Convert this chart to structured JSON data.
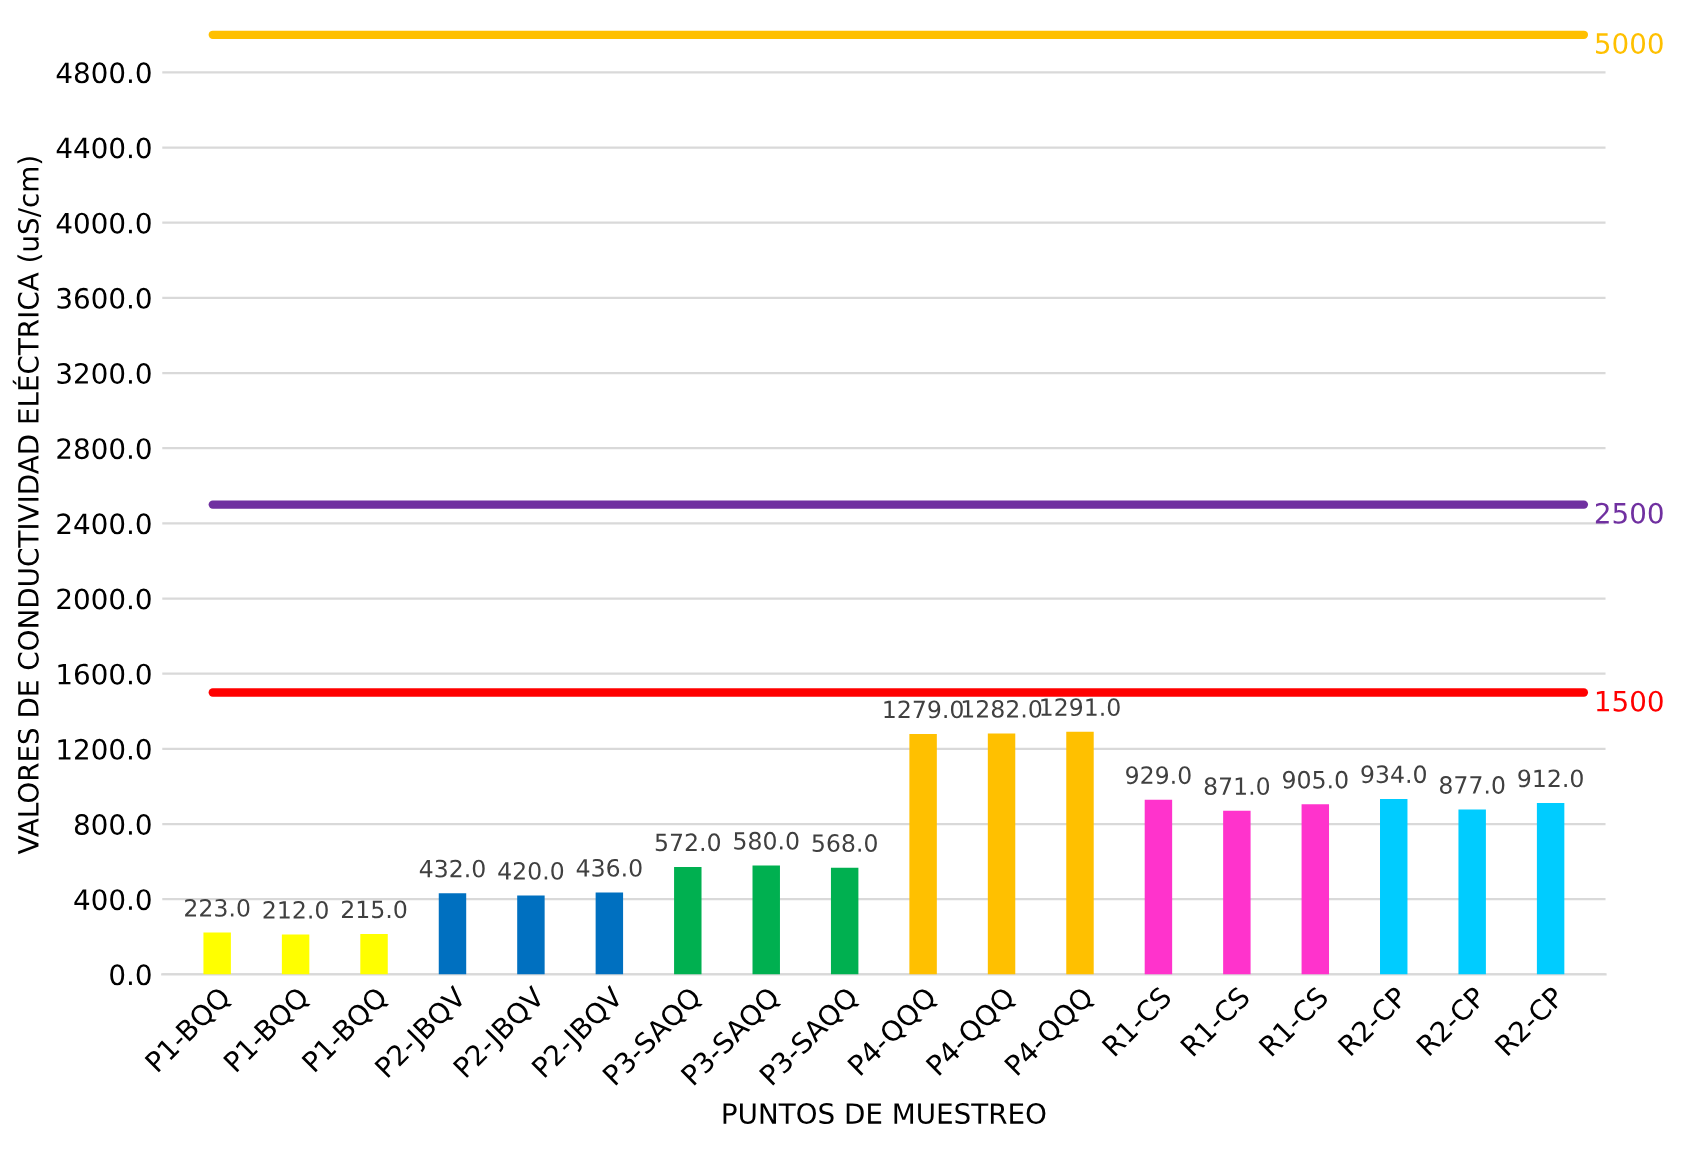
{
  "chart_data": {
    "type": "bar",
    "xlabel": "PUNTOS DE MUESTREO",
    "ylabel": "VALORES DE CONDUCTIVIDAD ELÉCTRICA (uS/cm)",
    "categories": [
      "P1-BQQ",
      "P1-BQQ",
      "P1-BQQ",
      "P2-JBQV",
      "P2-JBQV",
      "P2-JBQV",
      "P3-SAQQ",
      "P3-SAQQ",
      "P3-SAQQ",
      "P4-QQQ",
      "P4-QQQ",
      "P4-QQQ",
      "R1-CS",
      "R1-CS",
      "R1-CS",
      "R2-CP",
      "R2-CP",
      "R2-CP"
    ],
    "values": [
      223,
      212,
      215,
      432,
      420,
      436,
      572,
      580,
      568,
      1279,
      1282,
      1291,
      929,
      871,
      905,
      934,
      877,
      912
    ],
    "value_labels": [
      "223.0",
      "212.0",
      "215.0",
      "432.0",
      "420.0",
      "436.0",
      "572.0",
      "580.0",
      "568.0",
      "1279.0",
      "1282.0",
      "1291.0",
      "929.0",
      "871.0",
      "905.0",
      "934.0",
      "877.0",
      "912.0"
    ],
    "colors": [
      "#ffff00",
      "#ffff00",
      "#ffff00",
      "#0070c0",
      "#0070c0",
      "#0070c0",
      "#00b050",
      "#00b050",
      "#00b050",
      "#ffc000",
      "#ffc000",
      "#ffc000",
      "#ff33cc",
      "#ff33cc",
      "#ff33cc",
      "#00ccff",
      "#00ccff",
      "#00ccff"
    ],
    "ylim": [
      0,
      5000
    ],
    "yticks": [
      {
        "value": 0,
        "label": "0.0"
      },
      {
        "value": 400,
        "label": "400.0"
      },
      {
        "value": 800,
        "label": "800.0"
      },
      {
        "value": 1200,
        "label": "1200.0"
      },
      {
        "value": 1600,
        "label": "1600.0"
      },
      {
        "value": 2000,
        "label": "2000.0"
      },
      {
        "value": 2400,
        "label": "2400.0"
      },
      {
        "value": 2800,
        "label": "2800.0"
      },
      {
        "value": 3200,
        "label": "3200.0"
      },
      {
        "value": 3600,
        "label": "3600.0"
      },
      {
        "value": 4000,
        "label": "4000.0"
      },
      {
        "value": 4400,
        "label": "4400.0"
      },
      {
        "value": 4800,
        "label": "4800.0"
      }
    ],
    "grid": "y",
    "ref_lines": [
      {
        "axis": "y",
        "value": 5000,
        "label": "5000",
        "color": "#ffc000"
      },
      {
        "axis": "y",
        "value": 2500,
        "label": "2500",
        "color": "#7030a0"
      },
      {
        "axis": "y",
        "value": 1500,
        "label": "1500",
        "color": "#ff0000"
      }
    ]
  }
}
